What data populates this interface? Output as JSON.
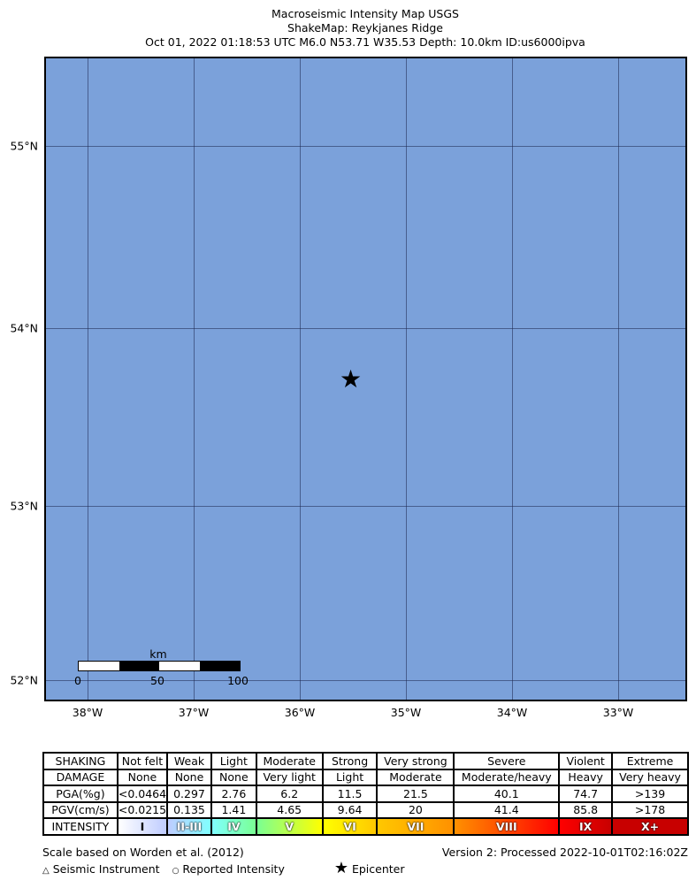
{
  "title": {
    "line1": "Macroseismic Intensity Map USGS",
    "line2": "ShakeMap: Reykjanes Ridge",
    "line3": "Oct 01, 2022 01:18:53 UTC M6.0 N53.71 W35.53 Depth: 10.0km ID:us6000ipva"
  },
  "map": {
    "background": "#7ba1da",
    "lat_labels": [
      "55°N",
      "54°N",
      "53°N",
      "52°N"
    ],
    "lon_labels": [
      "38°W",
      "37°W",
      "36°W",
      "35°W",
      "34°W",
      "33°W"
    ],
    "epicenter_icon": "star-icon",
    "scalebar": {
      "unit": "km",
      "ticks": [
        "0",
        "50",
        "100"
      ]
    }
  },
  "table": {
    "rows": [
      [
        "SHAKING",
        "Not felt",
        "Weak",
        "Light",
        "Moderate",
        "Strong",
        "Very strong",
        "Severe",
        "Violent",
        "Extreme"
      ],
      [
        "DAMAGE",
        "None",
        "None",
        "None",
        "Very light",
        "Light",
        "Moderate",
        "Moderate/heavy",
        "Heavy",
        "Very heavy"
      ],
      [
        "PGA(%g)",
        "<0.0464",
        "0.297",
        "2.76",
        "6.2",
        "11.5",
        "21.5",
        "40.1",
        "74.7",
        ">139"
      ],
      [
        "PGV(cm/s)",
        "<0.0215",
        "0.135",
        "1.41",
        "4.65",
        "9.64",
        "20",
        "41.4",
        "85.8",
        ">178"
      ]
    ],
    "intensity": [
      "INTENSITY",
      "I",
      "II-III",
      "IV",
      "V",
      "VI",
      "VII",
      "VIII",
      "IX",
      "X+"
    ],
    "intensity_colors": [
      "#ffffff",
      "#bfccff",
      "#80ffff",
      "#7aff93",
      "#ffff00",
      "#ffc800",
      "#ff9100",
      "#ff0000",
      "#c80000"
    ]
  },
  "footer": {
    "scale_note": "Scale based on Worden et al. (2012)",
    "version": "Version 2: Processed 2022-10-01T02:16:02Z",
    "legend": {
      "instrument": "Seismic Instrument",
      "reported": "Reported Intensity",
      "epicenter": "Epicenter"
    }
  }
}
